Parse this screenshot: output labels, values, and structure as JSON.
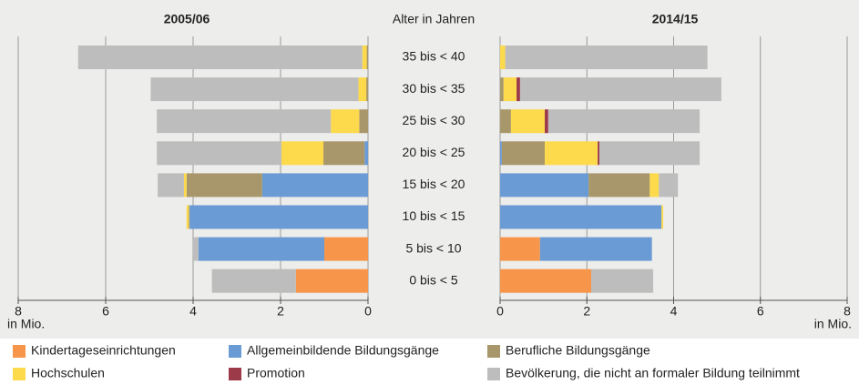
{
  "chart_data": {
    "type": "bar",
    "orientation": "horizontal",
    "stacked": true,
    "category_title": "Alter in Jahren",
    "categories": [
      "35 bis < 40",
      "30 bis < 35",
      "25 bis < 30",
      "20 bis < 25",
      "15 bis < 20",
      "10 bis < 15",
      "5 bis < 10",
      "0 bis < 5"
    ],
    "grid": true,
    "series": [
      {
        "name": "Kindertageseinrichtungen",
        "color": "#f7964a"
      },
      {
        "name": "Allgemeinbildende Bildungsgänge",
        "color": "#6b9bd4"
      },
      {
        "name": "Berufliche Bildungsgänge",
        "color": "#a8976a"
      },
      {
        "name": "Hochschulen",
        "color": "#fdd94c"
      },
      {
        "name": "Promotion",
        "color": "#9c3a4a"
      },
      {
        "name": "Bevölkerung, die nicht an formaler Bildung teilnimmt",
        "color": "#bdbdbd"
      }
    ],
    "panels": [
      {
        "title": "2005/06",
        "xlabel": "in Mio.",
        "xlim": [
          8,
          0
        ],
        "xticks": [
          8,
          6,
          4,
          2,
          0
        ],
        "values": [
          [
            0,
            0,
            0,
            0,
            0,
            0,
            1.0,
            1.65
          ],
          [
            0,
            0,
            0,
            0.08,
            2.42,
            4.08,
            2.88,
            0
          ],
          [
            0.03,
            0.04,
            0.2,
            0.94,
            1.73,
            0.02,
            0,
            0
          ],
          [
            0.1,
            0.18,
            0.65,
            0.96,
            0.06,
            0.05,
            0,
            0
          ],
          [
            0,
            0,
            0,
            0,
            0,
            0,
            0,
            0
          ],
          [
            6.5,
            4.75,
            3.98,
            2.85,
            0.6,
            0,
            0.12,
            1.92
          ]
        ]
      },
      {
        "title": "2014/15",
        "xlabel": "in Mio.",
        "xlim": [
          0,
          8
        ],
        "xticks": [
          0,
          2,
          4,
          6,
          8
        ],
        "values": [
          [
            0,
            0,
            0,
            0,
            0,
            0,
            0.92,
            2.1
          ],
          [
            0,
            0,
            0,
            0.04,
            2.04,
            3.72,
            2.58,
            0
          ],
          [
            0,
            0.08,
            0.25,
            0.99,
            1.41,
            0,
            0,
            0
          ],
          [
            0.12,
            0.3,
            0.78,
            1.22,
            0.21,
            0.04,
            0,
            0
          ],
          [
            0,
            0.08,
            0.08,
            0.04,
            0,
            0,
            0,
            0
          ],
          [
            4.66,
            4.64,
            3.49,
            2.31,
            0.44,
            0,
            0,
            1.43
          ]
        ]
      }
    ]
  }
}
